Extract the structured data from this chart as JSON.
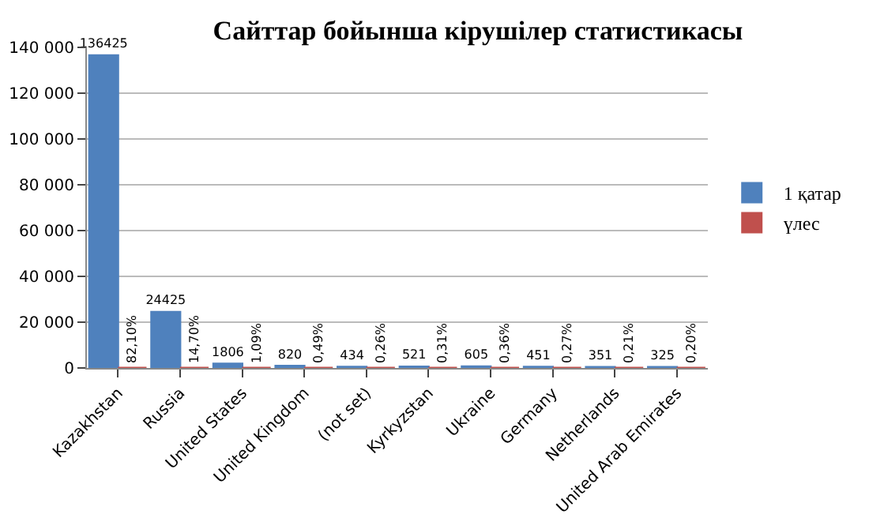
{
  "chart_data": {
    "type": "bar",
    "title": "Сайттар бойынша кірушілер статистикасы",
    "categories": [
      "Kazakhstan",
      "Russia",
      "United States",
      "United Kingdom",
      "(not set)",
      "Kyrkyzstan",
      "Ukraine",
      "Germany",
      "Netherlands",
      "United Arab Emirates"
    ],
    "series": [
      {
        "name": "1 қатар",
        "color": "#4f81bd",
        "values": [
          136425,
          24425,
          1806,
          820,
          434,
          521,
          605,
          451,
          351,
          325
        ],
        "value_labels": [
          "136425",
          "24425",
          "1806",
          "820",
          "434",
          "521",
          "605",
          "451",
          "351",
          "325"
        ]
      },
      {
        "name": "үлес",
        "color": "#c0504d",
        "values": [
          0.821,
          0.147,
          0.0109,
          0.0049,
          0.0026,
          0.0031,
          0.0036,
          0.0027,
          0.0021,
          0.002
        ],
        "value_labels": [
          "82,10%",
          "14,70%",
          "1,09%",
          "0,49%",
          "0,26%",
          "0,31%",
          "0,36%",
          "0,27%",
          "0,21%",
          "0,20%"
        ]
      }
    ],
    "ylim": [
      0,
      140000
    ],
    "yticks": [
      {
        "value": 0,
        "label": "0"
      },
      {
        "value": 20000,
        "label": "20 000"
      },
      {
        "value": 40000,
        "label": "40 000"
      },
      {
        "value": 60000,
        "label": "60 000"
      },
      {
        "value": 80000,
        "label": "80 000"
      },
      {
        "value": 100000,
        "label": "100 000"
      },
      {
        "value": 120000,
        "label": "120 000"
      },
      {
        "value": 140000,
        "label": "140 000"
      }
    ],
    "grid": "y",
    "legend": "right"
  }
}
